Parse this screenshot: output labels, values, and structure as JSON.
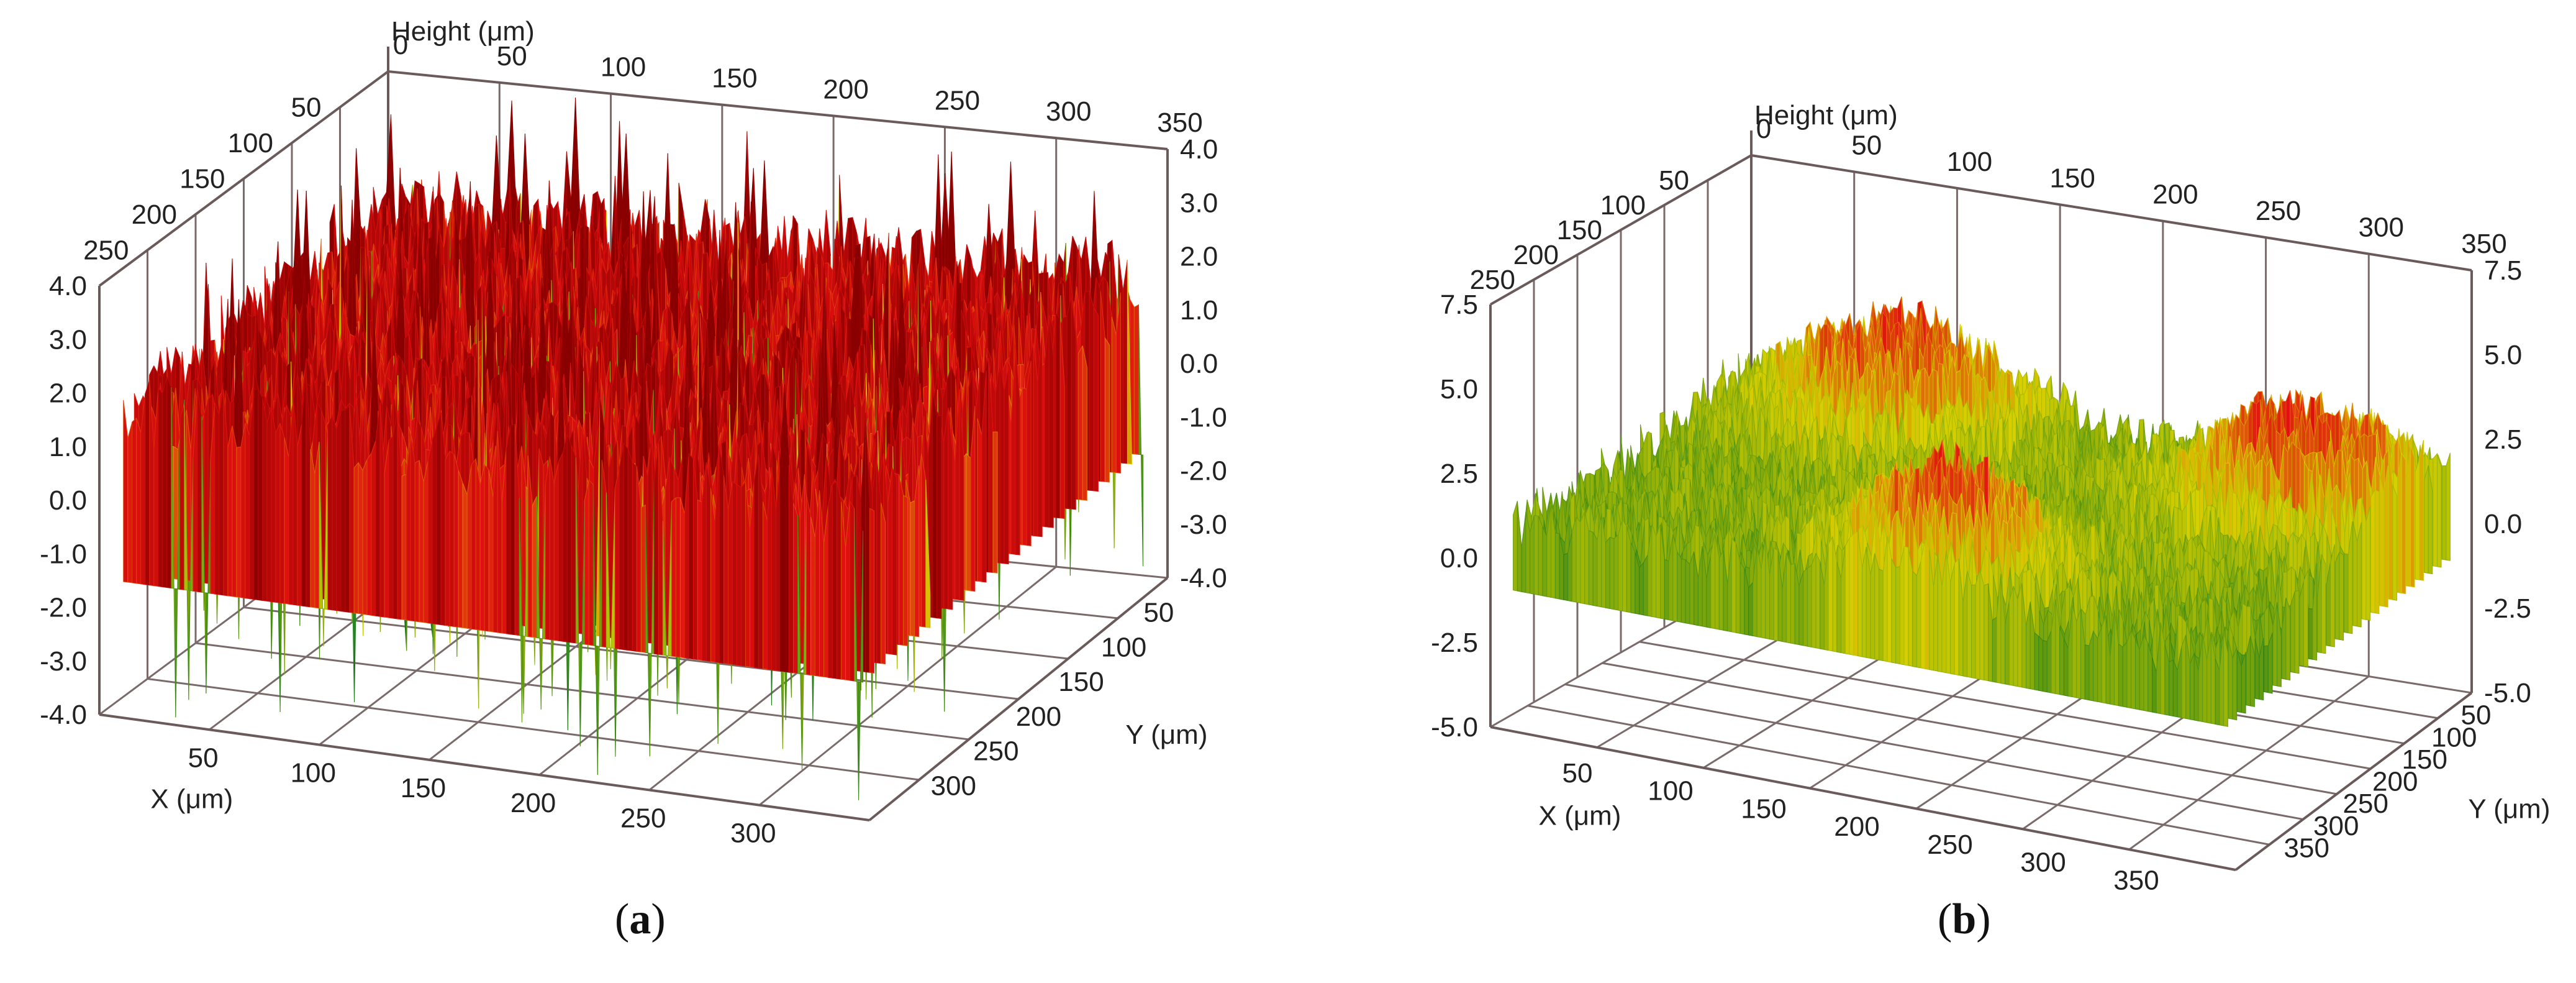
{
  "chart_data": [
    {
      "type": "surface3d",
      "panel_label": "a",
      "z_axis_label": "Height (μm)",
      "x_axis_label": "X (μm)",
      "y_axis_label": "Y (μm)",
      "x_ticks": [
        "50",
        "100",
        "150",
        "200",
        "250",
        "300"
      ],
      "y_ticks_bottom": [
        "50",
        "100",
        "150",
        "200",
        "250",
        "300"
      ],
      "x_ticks_top": [
        "0",
        "50",
        "100",
        "150",
        "200",
        "250",
        "300",
        "350"
      ],
      "y_ticks_left": [
        "50",
        "100",
        "150",
        "200",
        "250"
      ],
      "z_ticks_left": [
        "4.0",
        "3.0",
        "2.0",
        "1.0",
        "0.0",
        "-1.0",
        "-2.0",
        "-3.0",
        "-4.0"
      ],
      "z_ticks_right": [
        "4.0",
        "3.0",
        "2.0",
        "1.0",
        "0.0",
        "-1.0",
        "-2.0",
        "-3.0",
        "-4.0"
      ],
      "x_range": [
        0,
        350
      ],
      "y_range": [
        0,
        300
      ],
      "z_range": [
        -4.0,
        4.0
      ],
      "surface": "fine random roughness, mostly high (red) with many deep narrow valleys (green)",
      "colors": {
        "low": "#1a7a1a",
        "mid": "#d8d000",
        "high": "#e01010",
        "peak": "#8a0000"
      }
    },
    {
      "type": "surface3d",
      "panel_label": "b",
      "z_axis_label": "Height (μm)",
      "x_axis_label": "X (μm)",
      "y_axis_label": "Y (μm)",
      "x_ticks": [
        "50",
        "100",
        "150",
        "200",
        "250",
        "300",
        "350"
      ],
      "y_ticks_bottom": [
        "50",
        "100",
        "150",
        "200",
        "250",
        "300",
        "350"
      ],
      "x_ticks_top": [
        "0",
        "50",
        "100",
        "150",
        "200",
        "250",
        "300",
        "350"
      ],
      "y_ticks_left": [
        "50",
        "100",
        "150",
        "200",
        "250"
      ],
      "z_ticks_left": [
        "7.5",
        "5.0",
        "2.5",
        "0.0",
        "-2.5",
        "-5.0"
      ],
      "z_ticks_right": [
        "7.5",
        "5.0",
        "2.5",
        "0.0",
        "-2.5",
        "-5.0"
      ],
      "x_range": [
        0,
        350
      ],
      "y_range": [
        0,
        350
      ],
      "z_range": [
        -5.0,
        7.5
      ],
      "surface": "wavy surface: high (red) ridges at back-left, back-right and front-center, green trough in the middle",
      "colors": {
        "low": "#1a7a1a",
        "mid": "#d8d000",
        "high": "#e01010",
        "peak": "#8a0000"
      }
    }
  ],
  "captions": {
    "a": "a",
    "b": "b"
  }
}
